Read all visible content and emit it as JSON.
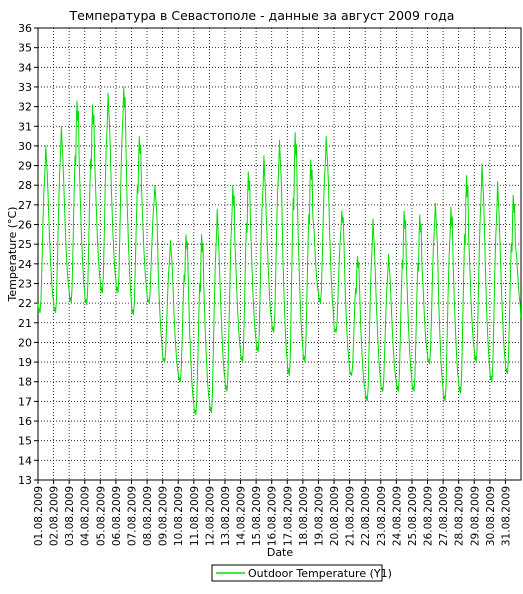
{
  "chart_data": {
    "type": "line",
    "title": "Температура в Севастополе - данные за август 2009 года",
    "xlabel": "Date",
    "ylabel": "Temperature (°C)",
    "ylim": [
      13,
      36
    ],
    "ytick_step": 1,
    "grid": true,
    "legend_position": "bottom-center",
    "x_tick_labels": [
      "01.08.2009",
      "02.08.2009",
      "03.08.2009",
      "04.08.2009",
      "05.08.2009",
      "06.08.2009",
      "07.08.2009",
      "08.08.2009",
      "09.08.2009",
      "10.08.2009",
      "11.08.2009",
      "12.08.2009",
      "13.08.2009",
      "14.08.2009",
      "15.08.2009",
      "16.08.2009",
      "17.08.2009",
      "18.08.2009",
      "19.08.2009",
      "20.08.2009",
      "21.08.2009",
      "22.08.2009",
      "23.08.2009",
      "24.08.2009",
      "25.08.2009",
      "26.08.2009",
      "27.08.2009",
      "28.08.2009",
      "29.08.2009",
      "30.08.2009",
      "31.08.2009"
    ],
    "series": [
      {
        "name": "Outdoor Temperature (Y1)",
        "color": "#00dd00",
        "daily_min": [
          21.5,
          21.5,
          22.0,
          21.9,
          22.5,
          22.5,
          21.4,
          22.0,
          19.0,
          18.0,
          16.3,
          16.4,
          17.5,
          19.0,
          19.5,
          20.5,
          18.3,
          19.0,
          22.0,
          20.5,
          18.3,
          17.0,
          17.5,
          17.5,
          17.5,
          18.9,
          17.0,
          17.4,
          19.0,
          18.0,
          18.4
        ],
        "daily_max": [
          30.0,
          31.0,
          32.3,
          32.1,
          32.7,
          33.0,
          30.5,
          28.0,
          25.2,
          25.5,
          25.5,
          26.8,
          28.0,
          28.7,
          29.5,
          30.3,
          30.7,
          29.3,
          30.5,
          26.7,
          24.4,
          26.3,
          24.5,
          26.7,
          26.5,
          27.1,
          26.9,
          28.5,
          29.1,
          28.2,
          27.5
        ],
        "end_value": 21.3
      }
    ]
  }
}
